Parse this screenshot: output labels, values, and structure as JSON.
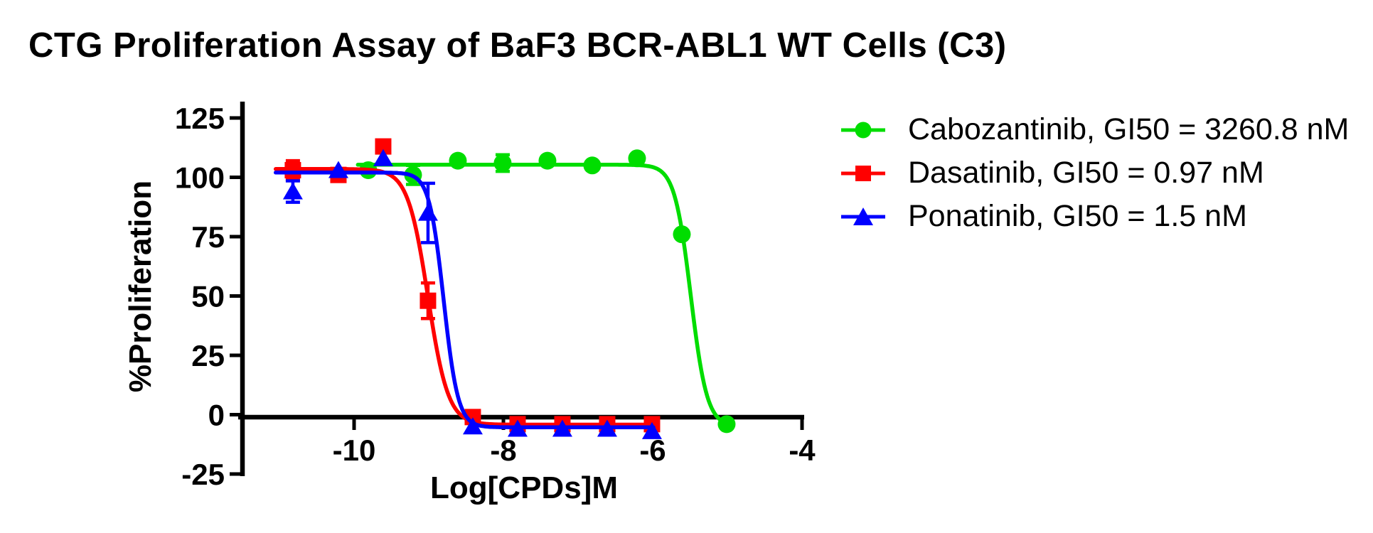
{
  "title": "CTG Proliferation Assay of BaF3 BCR-ABL1 WT Cells (C3)",
  "chart_data": {
    "type": "line",
    "title": "CTG Proliferation Assay of BaF3 BCR-ABL1 WT Cells (C3)",
    "xlabel": "Log[CPDs]M",
    "ylabel": "%Proliferation",
    "xlim": [
      -11.55,
      -4
    ],
    "ylim": [
      -25,
      125
    ],
    "x_ticks": [
      -10,
      -8,
      -6,
      -4
    ],
    "y_ticks": [
      125,
      100,
      75,
      50,
      25,
      0,
      -25
    ],
    "grid": false,
    "legend_position": "right",
    "axis_color": "#000000",
    "series": [
      {
        "name": "Cabozantinib",
        "legend_label": "Cabozantinib, GI50 = 3260.8 nM",
        "gi50_nM": 3260.8,
        "color": "#00DD00",
        "marker": "circle",
        "x": [
          -9.81,
          -9.21,
          -8.61,
          -8.01,
          -7.41,
          -6.81,
          -6.21,
          -5.61,
          -5.01
        ],
        "y": [
          103,
          101,
          107,
          106,
          107,
          105,
          108,
          76,
          -4
        ],
        "y_err": [
          0,
          4,
          0,
          3.5,
          0,
          0,
          0,
          0,
          0
        ],
        "fit": {
          "top": 105.3,
          "bottom": -5.0,
          "log_gi50": -5.49,
          "hill": 4.0,
          "x_start": -9.95,
          "x_end": -4.97
        }
      },
      {
        "name": "Dasatinib",
        "legend_label": "Dasatinib, GI50 = 0.97 nM",
        "gi50_nM": 0.97,
        "color": "#FF0000",
        "marker": "square",
        "x": [
          -10.82,
          -10.21,
          -9.61,
          -9.01,
          -8.41,
          -7.81,
          -7.21,
          -6.61,
          -6.01
        ],
        "y": [
          103,
          101,
          113,
          48,
          -1,
          -4,
          -4,
          -4,
          -4
        ],
        "y_err": [
          4,
          0,
          0,
          7.5,
          0,
          0,
          0,
          0,
          0
        ],
        "fit": {
          "top": 103.5,
          "bottom": -4.2,
          "log_gi50": -9.01,
          "hill": 3.2,
          "x_start": -11.05,
          "x_end": -5.98
        }
      },
      {
        "name": "Ponatinib",
        "legend_label": "Ponatinib, GI50 = 1.5 nM",
        "gi50_nM": 1.5,
        "color": "#0000FF",
        "marker": "triangle",
        "x": [
          -10.82,
          -10.21,
          -9.61,
          -9.01,
          -8.41,
          -7.81,
          -7.21,
          -6.61,
          -6.01
        ],
        "y": [
          94,
          103,
          108,
          85,
          -5,
          -6,
          -6,
          -6,
          -7
        ],
        "y_err": [
          4.5,
          0,
          0,
          12.5,
          0,
          0,
          0,
          0,
          0
        ],
        "fit": {
          "top": 102.0,
          "bottom": -5.3,
          "log_gi50": -8.8,
          "hill": 4.5,
          "x_start": -11.05,
          "x_end": -5.98
        }
      }
    ]
  }
}
